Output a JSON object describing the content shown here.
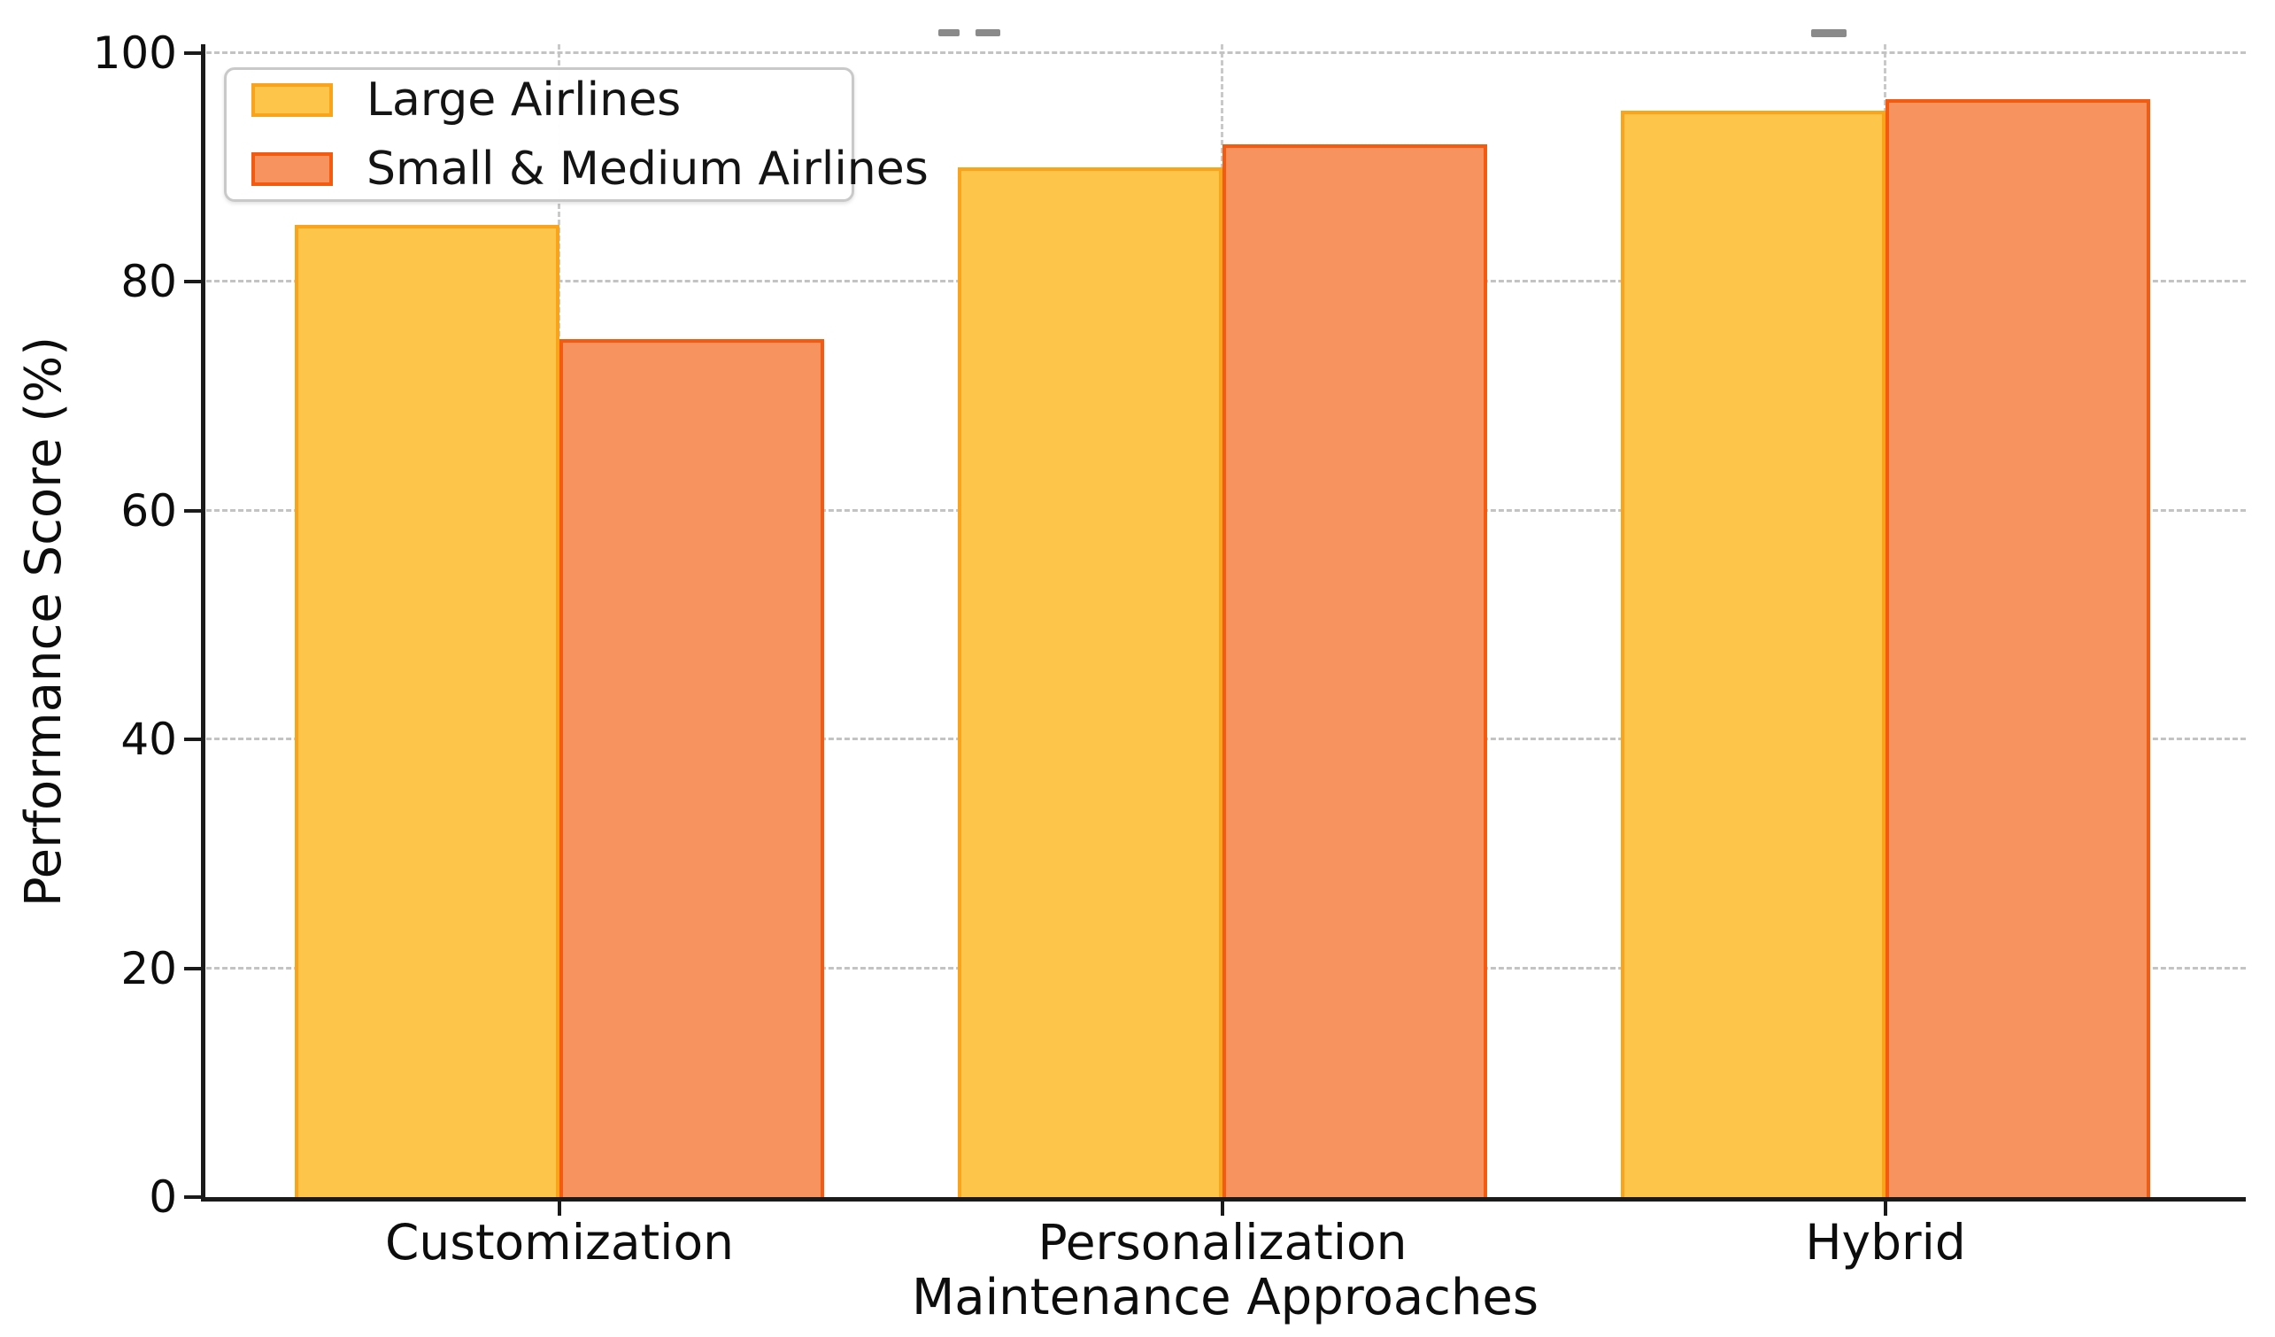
{
  "chart_data": {
    "type": "bar",
    "title": "",
    "xlabel": "Maintenance Approaches",
    "ylabel": "Performance Score (%)",
    "categories": [
      "Customization",
      "Personalization",
      "Hybrid"
    ],
    "series": [
      {
        "name": "Large Airlines",
        "values": [
          85,
          90,
          95
        ],
        "fill": "#FDC549",
        "edge": "#F9A41B"
      },
      {
        "name": "Small & Medium Airlines",
        "values": [
          75,
          92,
          96
        ],
        "fill": "#F7935F",
        "edge": "#F45A10"
      }
    ],
    "yticks": [
      0,
      20,
      40,
      60,
      80,
      100
    ],
    "ylim": [
      0,
      100
    ],
    "grid": "dashed",
    "grid_color": "#c3c3c3",
    "spine_color": "#1a1a1a",
    "legend_position": "upper-left",
    "legend_border_color": "#c9c9c9"
  }
}
